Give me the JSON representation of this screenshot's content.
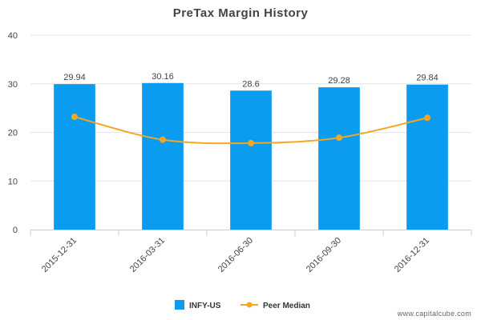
{
  "chart_data": {
    "type": "bar",
    "title": "PreTax Margin History",
    "categories": [
      "2015-12-31",
      "2016-03-31",
      "2016-06-30",
      "2016-09-30",
      "2016-12-31"
    ],
    "series": [
      {
        "name": "INFY-US",
        "type": "bar",
        "values": [
          29.94,
          30.16,
          28.6,
          29.28,
          29.84
        ],
        "color": "#0b9cf0"
      },
      {
        "name": "Peer Median",
        "type": "line",
        "values": [
          23.2,
          18.5,
          17.8,
          18.9,
          23.0
        ],
        "color": "#f5a623"
      }
    ],
    "data_labels": [
      "29.94",
      "30.16",
      "28.6",
      "29.28",
      "29.84"
    ],
    "ylim": [
      0,
      40
    ],
    "yticks": [
      "0",
      "10",
      "20",
      "30",
      "40"
    ],
    "legend_position": "bottom-center"
  },
  "watermark": "www.capitalcube.com"
}
